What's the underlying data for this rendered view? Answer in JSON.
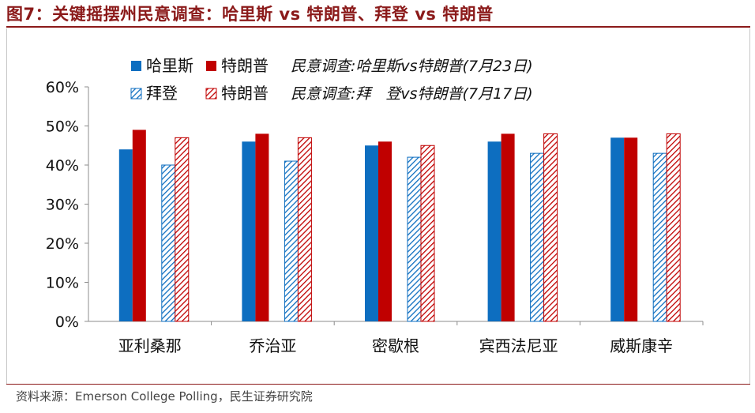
{
  "header": {
    "title": "图7：关键摇摆州民意调查：哈里斯 vs 特朗普、拜登 vs 特朗普"
  },
  "footer": {
    "source": "资料来源：Emerson College Polling，民生证券研究院"
  },
  "colors": {
    "title": "#8B1A1A",
    "harris": "#0D6EC0",
    "trump": "#C00000",
    "biden_hatch": "#0D6EC0",
    "trump_hatch": "#C00000"
  },
  "chart_data": {
    "type": "bar",
    "categories": [
      "亚利桑那",
      "乔治亚",
      "密歇根",
      "宾西法尼亚",
      "威斯康辛"
    ],
    "series": [
      {
        "name": "哈里斯",
        "values": [
          44,
          46,
          45,
          46,
          47
        ],
        "style": "solid",
        "color": "#0D6EC0"
      },
      {
        "name": "特朗普",
        "values": [
          49,
          48,
          46,
          48,
          47
        ],
        "style": "solid",
        "color": "#C00000"
      },
      {
        "name": "拜登",
        "values": [
          40,
          41,
          42,
          43,
          43
        ],
        "style": "hatched",
        "color": "#0D6EC0"
      },
      {
        "name": "特朗普",
        "values": [
          47,
          47,
          45,
          48,
          48
        ],
        "style": "hatched",
        "color": "#C00000"
      }
    ],
    "legend_notes": [
      "民意调查:哈里斯vs特朗普(7月23日)",
      "民意调查:拜　登vs特朗普(7月17日)"
    ],
    "y_ticks": [
      "0%",
      "10%",
      "20%",
      "30%",
      "40%",
      "50%",
      "60%"
    ],
    "ylim": [
      0,
      60
    ],
    "unit": "%",
    "legend_position": "top",
    "grid": false
  }
}
